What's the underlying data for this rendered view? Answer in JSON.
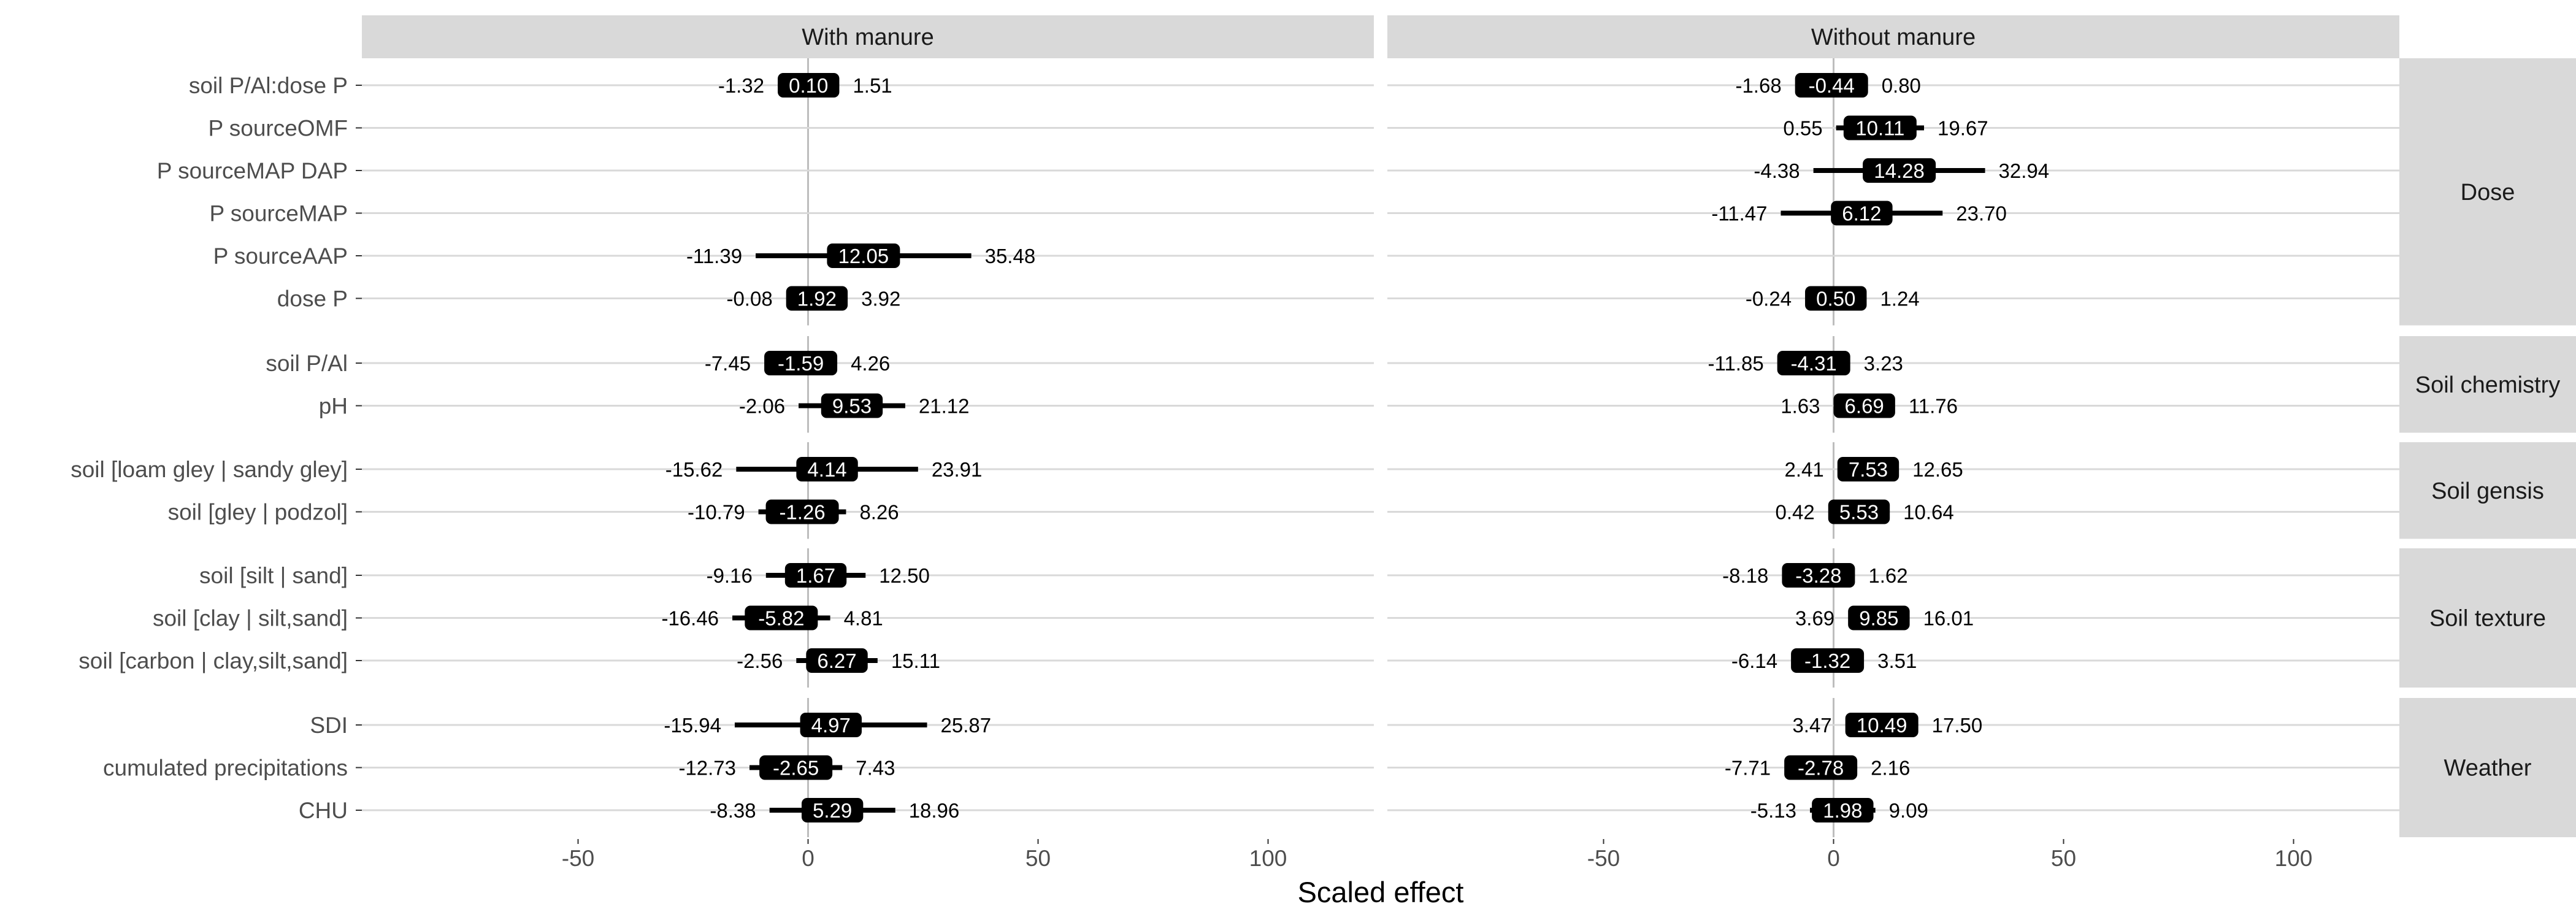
{
  "chart_data": {
    "type": "forest",
    "xlabel": "Scaled effect",
    "xlim": [
      -97,
      123
    ],
    "xticks": [
      -50,
      0,
      50,
      100
    ],
    "grid": true,
    "panels": [
      "With manure",
      "Without manure"
    ],
    "groups": [
      {
        "name": "Dose",
        "terms": [
          "soil P/Al:dose P",
          "P sourceOMF",
          "P sourceMAP DAP",
          "P sourceMAP",
          "P sourceAAP",
          "dose P"
        ]
      },
      {
        "name": "Soil chemistry",
        "terms": [
          "soil P/Al",
          "pH"
        ]
      },
      {
        "name": "Soil gensis",
        "terms": [
          "soil [loam gley | sandy gley]",
          "soil [gley | podzol]"
        ]
      },
      {
        "name": "Soil texture",
        "terms": [
          "soil [silt | sand]",
          "soil [clay | silt,sand]",
          "soil [carbon | clay,silt,sand]"
        ]
      },
      {
        "name": "Weather",
        "terms": [
          "SDI",
          "cumulated precipitations",
          "CHU"
        ]
      }
    ],
    "estimates": {
      "With manure": [
        {
          "term": "soil P/Al:dose P",
          "low": "-1.32",
          "est": "0.10",
          "high": "1.51"
        },
        {
          "term": "P sourceOMF",
          "low": null,
          "est": null,
          "high": null
        },
        {
          "term": "P sourceMAP DAP",
          "low": null,
          "est": null,
          "high": null
        },
        {
          "term": "P sourceMAP",
          "low": null,
          "est": null,
          "high": null
        },
        {
          "term": "P sourceAAP",
          "low": "-11.39",
          "est": "12.05",
          "high": "35.48"
        },
        {
          "term": "dose P",
          "low": "-0.08",
          "est": "1.92",
          "high": "3.92"
        },
        {
          "term": "soil P/Al",
          "low": "-7.45",
          "est": "-1.59",
          "high": "4.26"
        },
        {
          "term": "pH",
          "low": "-2.06",
          "est": "9.53",
          "high": "21.12"
        },
        {
          "term": "soil [loam gley | sandy gley]",
          "low": "-15.62",
          "est": "4.14",
          "high": "23.91"
        },
        {
          "term": "soil [gley | podzol]",
          "low": "-10.79",
          "est": "-1.26",
          "high": "8.26"
        },
        {
          "term": "soil [silt | sand]",
          "low": "-9.16",
          "est": "1.67",
          "high": "12.50"
        },
        {
          "term": "soil [clay | silt,sand]",
          "low": "-16.46",
          "est": "-5.82",
          "high": "4.81"
        },
        {
          "term": "soil [carbon | clay,silt,sand]",
          "low": "-2.56",
          "est": "6.27",
          "high": "15.11"
        },
        {
          "term": "SDI",
          "low": "-15.94",
          "est": "4.97",
          "high": "25.87"
        },
        {
          "term": "cumulated precipitations",
          "low": "-12.73",
          "est": "-2.65",
          "high": "7.43"
        },
        {
          "term": "CHU",
          "low": "-8.38",
          "est": "5.29",
          "high": "18.96"
        }
      ],
      "Without manure": [
        {
          "term": "soil P/Al:dose P",
          "low": "-1.68",
          "est": "-0.44",
          "high": "0.80"
        },
        {
          "term": "P sourceOMF",
          "low": "0.55",
          "est": "10.11",
          "high": "19.67"
        },
        {
          "term": "P sourceMAP DAP",
          "low": "-4.38",
          "est": "14.28",
          "high": "32.94"
        },
        {
          "term": "P sourceMAP",
          "low": "-11.47",
          "est": "6.12",
          "high": "23.70"
        },
        {
          "term": "P sourceAAP",
          "low": null,
          "est": null,
          "high": null
        },
        {
          "term": "dose P",
          "low": "-0.24",
          "est": "0.50",
          "high": "1.24"
        },
        {
          "term": "soil P/Al",
          "low": "-11.85",
          "est": "-4.31",
          "high": "3.23"
        },
        {
          "term": "pH",
          "low": "1.63",
          "est": "6.69",
          "high": "11.76"
        },
        {
          "term": "soil [loam gley | sandy gley]",
          "low": "2.41",
          "est": "7.53",
          "high": "12.65"
        },
        {
          "term": "soil [gley | podzol]",
          "low": "0.42",
          "est": "5.53",
          "high": "10.64"
        },
        {
          "term": "soil [silt | sand]",
          "low": "-8.18",
          "est": "-3.28",
          "high": "1.62"
        },
        {
          "term": "soil [clay | silt,sand]",
          "low": "3.69",
          "est": "9.85",
          "high": "16.01"
        },
        {
          "term": "soil [carbon | clay,silt,sand]",
          "low": "-6.14",
          "est": "-1.32",
          "high": "3.51"
        },
        {
          "term": "SDI",
          "low": "3.47",
          "est": "10.49",
          "high": "17.50"
        },
        {
          "term": "cumulated precipitations",
          "low": "-7.71",
          "est": "-2.78",
          "high": "2.16"
        },
        {
          "term": "CHU",
          "low": "-5.13",
          "est": "1.98",
          "high": "9.09"
        }
      ]
    },
    "colors": {
      "strip": "#d9d9d9",
      "grid": "#d9d9d9",
      "zero_line": "#bdbdbd",
      "interval": "#000000",
      "label_box": "#000000",
      "label_text": "#ffffff",
      "tick_text": "#4d4d4d"
    }
  }
}
